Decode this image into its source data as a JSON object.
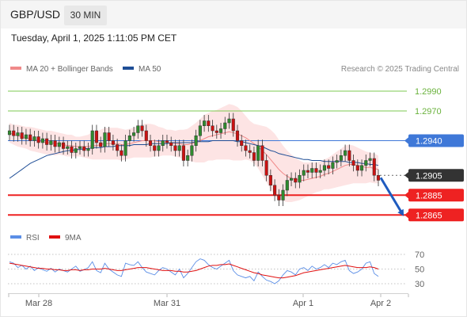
{
  "header": {
    "symbol": "GBP/USD",
    "timeframe": "30 MIN",
    "timestamp": "Tuesday, April 1, 2025 1:11:05 PM CET"
  },
  "legend": {
    "bollinger": "MA 20 + Bollinger Bands",
    "ma50": "MA 50",
    "credit": "Research © 2025 Trading Central",
    "rsi": "RSI",
    "ma9": "9MA"
  },
  "colors": {
    "bollinger": "#f08a8a",
    "ma50": "#1f4e96",
    "rsi": "#5b8ee6",
    "ma9": "#e01010",
    "up": "#2e8b2e",
    "down": "#cc1111",
    "green_level": "#7ec850",
    "red_level": "#ee2222",
    "blue_level": "#3f78d8",
    "current": "#333333"
  },
  "chart_data": {
    "type": "candlestick",
    "y_range": [
      1.2858,
      1.3002
    ],
    "x_ticks": [
      "Mar 28",
      "Mar 31",
      "Apr 1",
      "Apr 2"
    ],
    "levels": [
      {
        "price": 1.299,
        "label": "1.2990",
        "kind": "resistance"
      },
      {
        "price": 1.297,
        "label": "1.2970",
        "kind": "resistance"
      },
      {
        "price": 1.294,
        "label": "1.2940",
        "kind": "pivot"
      },
      {
        "price": 1.2905,
        "label": "1.2905",
        "kind": "current"
      },
      {
        "price": 1.2885,
        "label": "1.2885",
        "kind": "support"
      },
      {
        "price": 1.2865,
        "label": "1.2865",
        "kind": "support"
      }
    ],
    "closes": [
      1.295,
      1.2945,
      1.2948,
      1.2942,
      1.2946,
      1.294,
      1.2944,
      1.2938,
      1.2942,
      1.2936,
      1.294,
      1.2934,
      1.2938,
      1.2932,
      1.2934,
      1.2928,
      1.2932,
      1.2934,
      1.293,
      1.2932,
      1.295,
      1.2938,
      1.2934,
      1.2948,
      1.294,
      1.2936,
      1.293,
      1.2925,
      1.294,
      1.2945,
      1.2948,
      1.2955,
      1.295,
      1.294,
      1.2935,
      1.293,
      1.2935,
      1.294,
      1.2938,
      1.2935,
      1.293,
      1.2935,
      1.292,
      1.2925,
      1.2935,
      1.2945,
      1.2955,
      1.296,
      1.2955,
      1.295,
      1.2948,
      1.2952,
      1.2958,
      1.2962,
      1.295,
      1.294,
      1.2935,
      1.293,
      1.2928,
      1.292,
      1.2935,
      1.292,
      1.2905,
      1.2895,
      1.2885,
      1.288,
      1.289,
      1.29,
      1.2902,
      1.2898,
      1.2905,
      1.291,
      1.2908,
      1.2912,
      1.2908,
      1.291,
      1.2915,
      1.2912,
      1.2918,
      1.292,
      1.2925,
      1.293,
      1.292,
      1.2915,
      1.291,
      1.2915,
      1.292,
      1.2922,
      1.2905,
      1.29
    ],
    "ma20": [
      1.2948,
      1.2946,
      1.2945,
      1.2944,
      1.2943,
      1.2942,
      1.2941,
      1.294,
      1.2939,
      1.2938,
      1.2938,
      1.2937,
      1.2937,
      1.2936,
      1.2935,
      1.2935,
      1.2934,
      1.2934,
      1.2934,
      1.2934,
      1.2935,
      1.2935,
      1.2936,
      1.2937,
      1.2937,
      1.2937,
      1.2937,
      1.2936,
      1.2936,
      1.2937,
      1.2938,
      1.2939,
      1.294,
      1.294,
      1.294,
      1.294,
      1.2939,
      1.2939,
      1.2938,
      1.2938,
      1.2937,
      1.2937,
      1.2936,
      1.2936,
      1.2937,
      1.2938,
      1.294,
      1.2942,
      1.2944,
      1.2945,
      1.2946,
      1.2947,
      1.2948,
      1.2949,
      1.2948,
      1.2947,
      1.2945,
      1.2943,
      1.294,
      1.2937,
      1.2934,
      1.293,
      1.2926,
      1.2921,
      1.2916,
      1.2911,
      1.2907,
      1.2904,
      1.2902,
      1.2901,
      1.29,
      1.29,
      1.2901,
      1.2902,
      1.2903,
      1.2904,
      1.2906,
      1.2907,
      1.2909,
      1.2911,
      1.2913,
      1.2915,
      1.2916,
      1.2916,
      1.2915,
      1.2914,
      1.2913,
      1.2913,
      1.2912,
      1.2911
    ],
    "ma50": [
      1.2902,
      1.2905,
      1.2908,
      1.2911,
      1.2914,
      1.2917,
      1.2919,
      1.2921,
      1.2923,
      1.2925,
      1.2926,
      1.2927,
      1.2928,
      1.2929,
      1.293,
      1.293,
      1.2931,
      1.2931,
      1.2932,
      1.2932,
      1.2933,
      1.2933,
      1.2933,
      1.2934,
      1.2934,
      1.2934,
      1.2935,
      1.2935,
      1.2935,
      1.2935,
      1.2936,
      1.2936,
      1.2936,
      1.2936,
      1.2937,
      1.2937,
      1.2937,
      1.2937,
      1.2937,
      1.2938,
      1.2938,
      1.2938,
      1.2938,
      1.2938,
      1.2938,
      1.2939,
      1.2939,
      1.2939,
      1.2939,
      1.294,
      1.294,
      1.294,
      1.294,
      1.294,
      1.294,
      1.2939,
      1.2939,
      1.2938,
      1.2937,
      1.2936,
      1.2935,
      1.2934,
      1.2932,
      1.293,
      1.2929,
      1.2927,
      1.2926,
      1.2925,
      1.2924,
      1.2923,
      1.2922,
      1.2921,
      1.2921,
      1.292,
      1.292,
      1.292,
      1.2919,
      1.2919,
      1.2919,
      1.2919,
      1.2919,
      1.2919,
      1.2918,
      1.2918,
      1.2918,
      1.2917,
      1.2917,
      1.2916,
      1.2916,
      1.2915
    ],
    "bb_width": [
      0.001,
      0.001,
      0.0011,
      0.0011,
      0.0011,
      0.0012,
      0.0012,
      0.0012,
      0.0012,
      0.0012,
      0.0012,
      0.0012,
      0.0011,
      0.0011,
      0.0011,
      0.0011,
      0.001,
      0.001,
      0.0011,
      0.0012,
      0.0014,
      0.0014,
      0.0015,
      0.0016,
      0.0016,
      0.0016,
      0.0016,
      0.0016,
      0.0015,
      0.0015,
      0.0015,
      0.0016,
      0.0017,
      0.0017,
      0.0017,
      0.0016,
      0.0015,
      0.0014,
      0.0013,
      0.0013,
      0.0013,
      0.0014,
      0.0015,
      0.0016,
      0.0018,
      0.002,
      0.0022,
      0.0024,
      0.0024,
      0.0025,
      0.0025,
      0.0026,
      0.0027,
      0.0028,
      0.0028,
      0.0027,
      0.0025,
      0.0022,
      0.002,
      0.002,
      0.0022,
      0.0025,
      0.0028,
      0.003,
      0.0031,
      0.003,
      0.0028,
      0.0026,
      0.0024,
      0.0022,
      0.002,
      0.0018,
      0.0017,
      0.0016,
      0.0015,
      0.0015,
      0.0015,
      0.0016,
      0.0017,
      0.0018,
      0.0019,
      0.002,
      0.002,
      0.0019,
      0.0018,
      0.0017,
      0.0016,
      0.0015,
      0.0015,
      0.0014
    ],
    "forecast": {
      "from": 1.2905,
      "to": 1.2865
    },
    "rsi": {
      "ticks": [
        "70",
        "50",
        "30"
      ],
      "levels": [
        70,
        50,
        30
      ],
      "values": [
        60,
        58,
        52,
        55,
        50,
        54,
        48,
        52,
        49,
        47,
        51,
        46,
        50,
        48,
        46,
        50,
        54,
        47,
        49,
        52,
        60,
        48,
        45,
        58,
        50,
        46,
        42,
        40,
        58,
        56,
        55,
        60,
        52,
        46,
        44,
        42,
        48,
        52,
        50,
        46,
        42,
        50,
        38,
        44,
        52,
        60,
        64,
        62,
        56,
        52,
        50,
        54,
        58,
        62,
        48,
        42,
        40,
        38,
        40,
        34,
        46,
        40,
        35,
        33,
        30,
        34,
        42,
        48,
        46,
        42,
        50,
        52,
        48,
        54,
        50,
        52,
        56,
        52,
        58,
        56,
        60,
        62,
        48,
        44,
        46,
        50,
        58,
        60,
        44,
        40
      ],
      "ma9": [
        58,
        57,
        56,
        55,
        54,
        53,
        52,
        51,
        51,
        50,
        50,
        49,
        49,
        48,
        48,
        49,
        49,
        48,
        49,
        49,
        50,
        50,
        50,
        51,
        50,
        49,
        48,
        48,
        49,
        50,
        51,
        52,
        52,
        52,
        51,
        50,
        49,
        48,
        48,
        48,
        47,
        47,
        46,
        46,
        47,
        48,
        50,
        52,
        54,
        55,
        55,
        56,
        56,
        57,
        55,
        53,
        51,
        49,
        47,
        45,
        44,
        42,
        41,
        40,
        39,
        38,
        38,
        39,
        40,
        41,
        43,
        45,
        46,
        47,
        48,
        49,
        50,
        51,
        52,
        53,
        54,
        55,
        54,
        53,
        52,
        52,
        52,
        53,
        52,
        50
      ]
    }
  }
}
